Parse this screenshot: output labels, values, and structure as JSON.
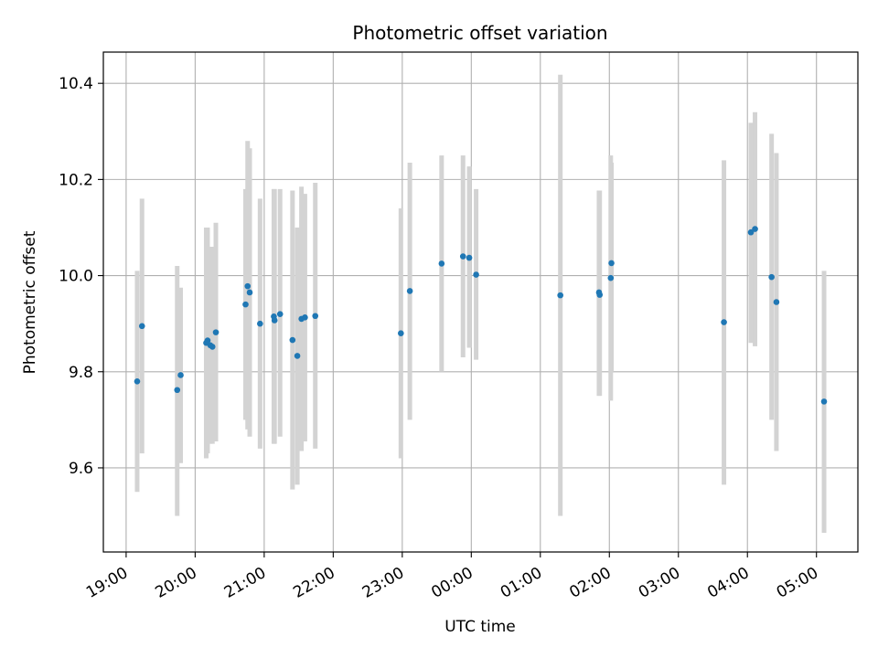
{
  "chart_data": {
    "type": "scatter",
    "title": "Photometric offset variation",
    "xlabel": "UTC time",
    "ylabel": "Photometric offset",
    "x_unit": "hours since 19:00 UTC",
    "xlim": [
      -0.33,
      10.6
    ],
    "ylim": [
      9.425,
      10.465
    ],
    "grid": true,
    "x_ticks": [
      {
        "value": 0,
        "label": "19:00"
      },
      {
        "value": 1,
        "label": "20:00"
      },
      {
        "value": 2,
        "label": "21:00"
      },
      {
        "value": 3,
        "label": "22:00"
      },
      {
        "value": 4,
        "label": "23:00"
      },
      {
        "value": 5,
        "label": "00:00"
      },
      {
        "value": 6,
        "label": "01:00"
      },
      {
        "value": 7,
        "label": "02:00"
      },
      {
        "value": 8,
        "label": "03:00"
      },
      {
        "value": 9,
        "label": "04:00"
      },
      {
        "value": 10,
        "label": "05:00"
      }
    ],
    "y_ticks": [
      {
        "value": 9.6,
        "label": "9.6"
      },
      {
        "value": 9.8,
        "label": "9.8"
      },
      {
        "value": 10.0,
        "label": "10.0"
      },
      {
        "value": 10.2,
        "label": "10.2"
      },
      {
        "value": 10.4,
        "label": "10.4"
      }
    ],
    "colors": {
      "marker": "#1f77b4",
      "errorbar": "#d3d3d3",
      "grid": "#b0b0b0",
      "axis": "#000000"
    },
    "points": [
      {
        "x": 0.16,
        "y": 9.78,
        "low": 9.55,
        "high": 10.01
      },
      {
        "x": 0.23,
        "y": 9.895,
        "low": 9.63,
        "high": 10.16
      },
      {
        "x": 0.74,
        "y": 9.762,
        "low": 9.5,
        "high": 10.02
      },
      {
        "x": 0.79,
        "y": 9.793,
        "low": 9.61,
        "high": 9.975
      },
      {
        "x": 1.16,
        "y": 9.86,
        "low": 9.62,
        "high": 10.1
      },
      {
        "x": 1.18,
        "y": 9.865,
        "low": 9.63,
        "high": 10.1
      },
      {
        "x": 1.22,
        "y": 9.855,
        "low": 9.65,
        "high": 10.06
      },
      {
        "x": 1.25,
        "y": 9.852,
        "low": 9.65,
        "high": 10.06
      },
      {
        "x": 1.3,
        "y": 9.882,
        "low": 9.655,
        "high": 10.11
      },
      {
        "x": 1.73,
        "y": 9.94,
        "low": 9.7,
        "high": 10.18
      },
      {
        "x": 1.76,
        "y": 9.978,
        "low": 9.68,
        "high": 10.28
      },
      {
        "x": 1.79,
        "y": 9.965,
        "low": 9.665,
        "high": 10.265
      },
      {
        "x": 1.94,
        "y": 9.9,
        "low": 9.64,
        "high": 10.16
      },
      {
        "x": 2.14,
        "y": 9.915,
        "low": 9.65,
        "high": 10.18
      },
      {
        "x": 2.15,
        "y": 9.907,
        "low": 9.65,
        "high": 10.18
      },
      {
        "x": 2.23,
        "y": 9.92,
        "low": 9.665,
        "high": 10.18
      },
      {
        "x": 2.41,
        "y": 9.866,
        "low": 9.555,
        "high": 10.177
      },
      {
        "x": 2.48,
        "y": 9.833,
        "low": 9.565,
        "high": 10.1
      },
      {
        "x": 2.54,
        "y": 9.91,
        "low": 9.635,
        "high": 10.185
      },
      {
        "x": 2.59,
        "y": 9.913,
        "low": 9.655,
        "high": 10.17
      },
      {
        "x": 2.74,
        "y": 9.916,
        "low": 9.64,
        "high": 10.193
      },
      {
        "x": 3.98,
        "y": 9.88,
        "low": 9.62,
        "high": 10.14
      },
      {
        "x": 4.11,
        "y": 9.968,
        "low": 9.7,
        "high": 10.235
      },
      {
        "x": 4.57,
        "y": 10.025,
        "low": 9.8,
        "high": 10.25
      },
      {
        "x": 4.88,
        "y": 10.04,
        "low": 9.83,
        "high": 10.25
      },
      {
        "x": 4.97,
        "y": 10.037,
        "low": 9.85,
        "high": 10.227
      },
      {
        "x": 5.07,
        "y": 10.002,
        "low": 9.825,
        "high": 10.18
      },
      {
        "x": 6.29,
        "y": 9.959,
        "low": 9.5,
        "high": 10.418
      },
      {
        "x": 6.85,
        "y": 9.965,
        "low": 9.75,
        "high": 10.177
      },
      {
        "x": 6.86,
        "y": 9.96,
        "low": 9.75,
        "high": 10.177
      },
      {
        "x": 7.02,
        "y": 9.995,
        "low": 9.74,
        "high": 10.25
      },
      {
        "x": 7.03,
        "y": 10.026,
        "low": 9.8,
        "high": 10.235
      },
      {
        "x": 8.66,
        "y": 9.903,
        "low": 9.565,
        "high": 10.24
      },
      {
        "x": 9.05,
        "y": 10.09,
        "low": 9.86,
        "high": 10.318
      },
      {
        "x": 9.11,
        "y": 10.097,
        "low": 9.853,
        "high": 10.34
      },
      {
        "x": 9.35,
        "y": 9.997,
        "low": 9.7,
        "high": 10.295
      },
      {
        "x": 9.42,
        "y": 9.945,
        "low": 9.635,
        "high": 10.255
      },
      {
        "x": 10.11,
        "y": 9.738,
        "low": 9.465,
        "high": 10.01
      }
    ]
  }
}
